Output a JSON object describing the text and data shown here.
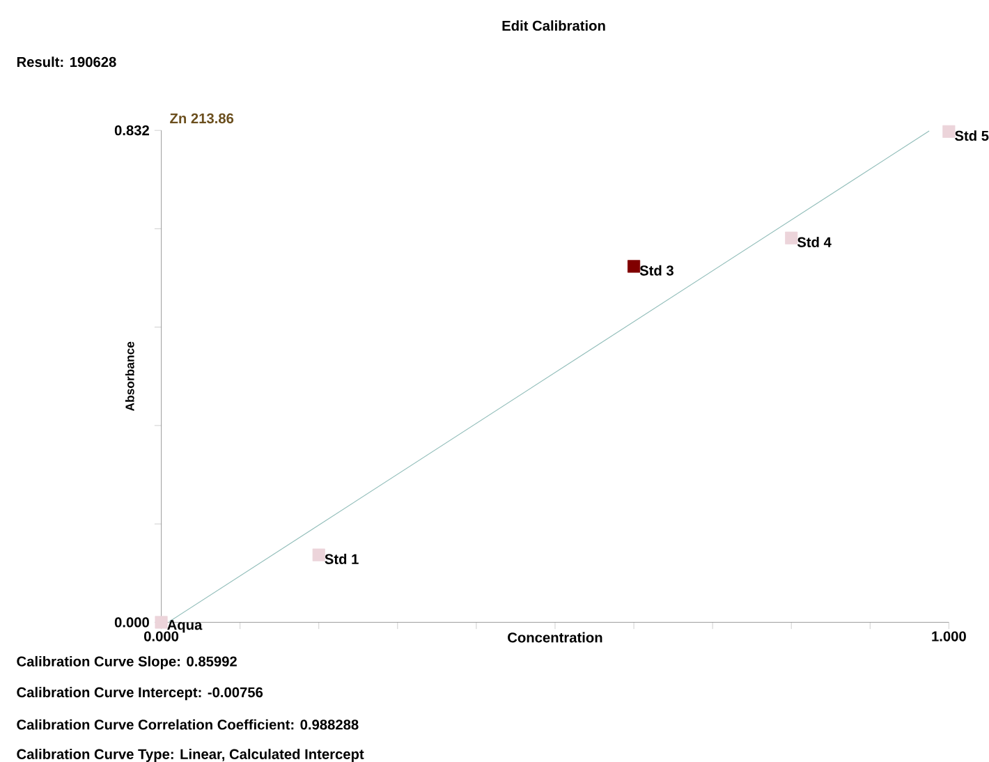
{
  "chart_data": {
    "type": "scatter",
    "title": "Edit Calibration",
    "subtitle": "Zn 213.86",
    "xlabel": "Concentration",
    "ylabel": "Absorbance",
    "marker": "square",
    "xlim": [
      0,
      1
    ],
    "ylim": [
      0,
      0.832
    ],
    "xticks": [
      {
        "value": 0,
        "label": "0.000"
      },
      {
        "value": 0.1,
        "label": null
      },
      {
        "value": 0.2,
        "label": null
      },
      {
        "value": 0.3,
        "label": null
      },
      {
        "value": 0.4,
        "label": null
      },
      {
        "value": 0.5,
        "label": null
      },
      {
        "value": 0.6,
        "label": null
      },
      {
        "value": 0.7,
        "label": null
      },
      {
        "value": 0.8,
        "label": null
      },
      {
        "value": 0.9,
        "label": null
      },
      {
        "value": 1,
        "label": "1.000"
      }
    ],
    "yticks": [
      {
        "value": 0,
        "label": "0.000"
      },
      {
        "value": 0.1664,
        "label": null
      },
      {
        "value": 0.3328,
        "label": null
      },
      {
        "value": 0.4992,
        "label": null
      },
      {
        "value": 0.6656,
        "label": null
      },
      {
        "value": 0.832,
        "label": "0.832"
      }
    ],
    "series": [
      {
        "type": "line",
        "marker": "none",
        "color": "#8fbcb8",
        "x": [
          0.01,
          0.975
        ],
        "values": [
          0.001,
          0.831
        ]
      },
      {
        "color": "#ecd4da",
        "x": [
          0,
          0.2,
          0.8,
          1.0
        ],
        "values": [
          0,
          0.114,
          0.65,
          0.83
        ]
      },
      {
        "color": "#800000",
        "x": [
          0.6
        ],
        "values": [
          0.602
        ]
      }
    ],
    "annotations": [
      "Result: 190628",
      {
        "text": "Aqua",
        "x": 0,
        "y": 0
      },
      {
        "text": "Std 1",
        "x": 0.2,
        "y": 0.114
      },
      {
        "text": "Std 3",
        "x": 0.6,
        "y": 0.602
      },
      {
        "text": "Std 4",
        "x": 0.8,
        "y": 0.65
      },
      {
        "text": "Std 5",
        "x": 1.0,
        "y": 0.83
      },
      "Calibration Curve Slope:  0.85992",
      "Calibration Curve Intercept:  -0.00756",
      "Calibration Curve Correlation Coefficient:  0.988288",
      "Calibration Curve Type:  Linear, Calculated Intercept"
    ]
  }
}
